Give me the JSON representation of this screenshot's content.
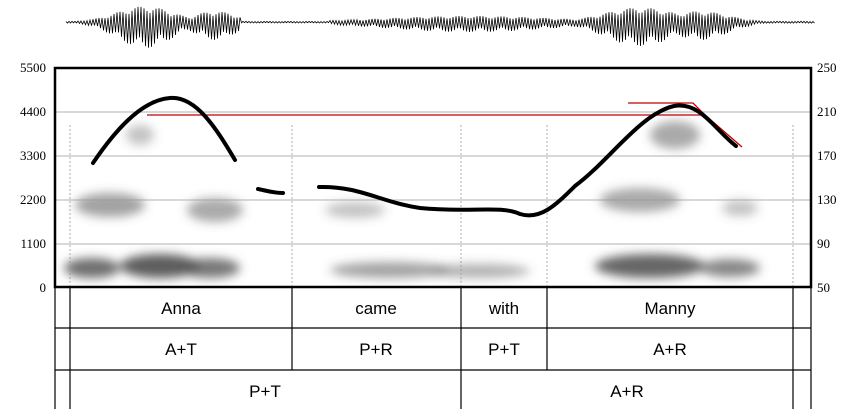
{
  "figure": {
    "left_axis": {
      "ticks": [
        "5500",
        "4400",
        "3300",
        "2200",
        "1100",
        "0"
      ]
    },
    "right_axis": {
      "ticks": [
        "250",
        "210",
        "170",
        "130",
        "90",
        "50"
      ]
    },
    "colors": {
      "pitch_track": "#000000",
      "reference_line": "#c00000",
      "grid": "#999999",
      "spectrogram": "#555555"
    }
  },
  "tiers": {
    "words": [
      "Anna",
      "came",
      "with",
      "Manny"
    ],
    "accents": [
      "A+T",
      "P+R",
      "P+T",
      "A+R"
    ],
    "phrases": [
      "P+T",
      "A+R"
    ]
  }
}
